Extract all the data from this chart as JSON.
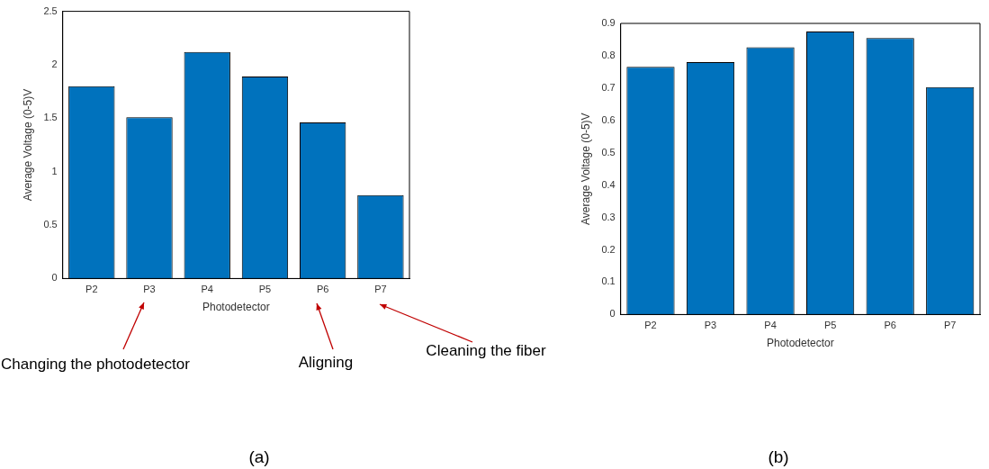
{
  "chart_data": [
    {
      "type": "bar",
      "xlabel": "Photodetector",
      "ylabel": "Average Voltage (0-5)V",
      "categories": [
        "P2",
        "P3",
        "P4",
        "P5",
        "P6",
        "P7"
      ],
      "values": [
        1.8,
        1.51,
        2.12,
        1.89,
        1.46,
        0.78
      ],
      "color": "#0072bd",
      "ylim": [
        0,
        2.5
      ],
      "yticks": [
        0,
        0.5,
        1,
        1.5,
        2,
        2.5
      ],
      "grid": false,
      "annotations": [
        "Changing the photodetector",
        "Aligning",
        "Cleaning the fiber",
        "(a)"
      ]
    },
    {
      "type": "bar",
      "xlabel": "Photodetector",
      "ylabel": "Average Voltage (0-5)V",
      "categories": [
        "P2",
        "P3",
        "P4",
        "P5",
        "P6",
        "P7"
      ],
      "values": [
        0.766,
        0.78,
        0.826,
        0.875,
        0.855,
        0.703
      ],
      "color": "#0072bd",
      "ylim": [
        0,
        0.9
      ],
      "yticks": [
        0,
        0.1,
        0.2,
        0.3,
        0.4,
        0.5,
        0.6,
        0.7,
        0.8,
        0.9
      ],
      "grid": false,
      "annotations": [
        "(b)"
      ]
    }
  ]
}
